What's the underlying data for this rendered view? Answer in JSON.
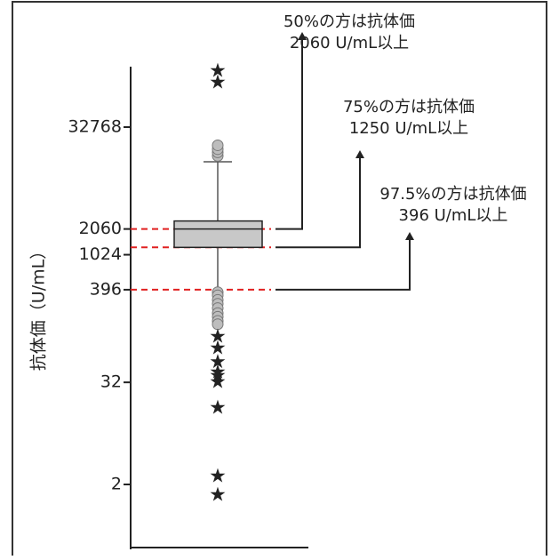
{
  "chart_data": {
    "type": "box",
    "ylabel": "抗体価（U/mL）",
    "yscale": "log2",
    "ylim": [
      0.8,
      400000
    ],
    "yticks": [
      {
        "value": 32768,
        "label": "32768"
      },
      {
        "value": 2060,
        "label": "2060"
      },
      {
        "value": 1024,
        "label": "1024"
      },
      {
        "value": 396,
        "label": "396"
      },
      {
        "value": 32,
        "label": "32"
      },
      {
        "value": 2,
        "label": "2"
      }
    ],
    "box": {
      "q1": 1250,
      "median": 2060,
      "q3": 2560,
      "whisker_low": 396,
      "whisker_high": 12800
    },
    "outliers_circle": [
      15000,
      16500,
      18000,
      20000,
      370,
      340,
      300,
      270,
      240,
      210,
      190,
      170,
      155
    ],
    "outliers_star": [
      150000,
      110000,
      110,
      80,
      55,
      42,
      38,
      32,
      16,
      2.5,
      1.5
    ],
    "reference_lines": [
      2060,
      1250,
      396
    ],
    "annotations": [
      {
        "lines": [
          "50%の方は抗体価",
          "2060 U/mL以上"
        ],
        "value": 2060
      },
      {
        "lines": [
          "75%の方は抗体価",
          "1250 U/mL以上"
        ],
        "value": 1250
      },
      {
        "lines": [
          "97.5%の方は抗体価",
          "396 U/mL以上"
        ],
        "value": 396
      }
    ],
    "colors": {
      "box_fill": "#c8c8c8",
      "reference_line": "#e02020",
      "axis": "#222222",
      "outlier_circle_fill": "#bdbdbd"
    }
  }
}
